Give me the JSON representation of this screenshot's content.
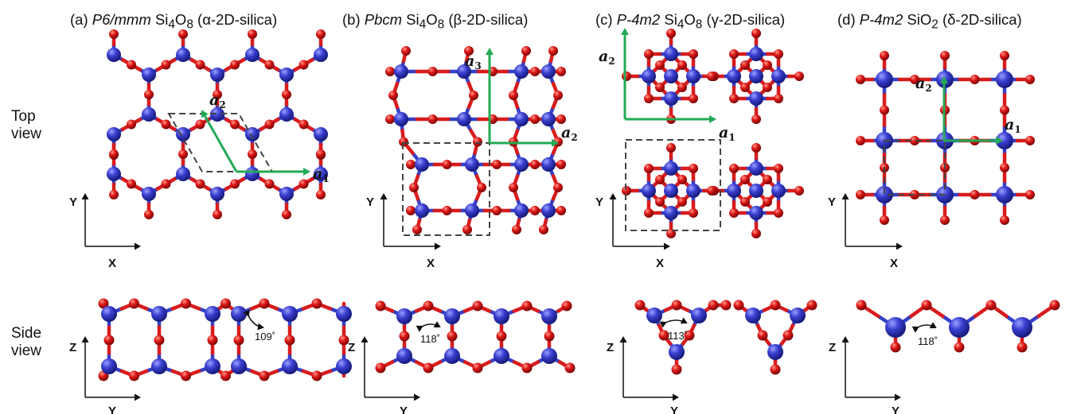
{
  "panels": [
    {
      "id": "a",
      "prefix": "(a) ",
      "group": "P6/mmm",
      "formula_main": " Si",
      "sub1": "4",
      "mid": "O",
      "sub2": "8",
      "suffix": " (α-2D-silica)"
    },
    {
      "id": "b",
      "prefix": "(b) ",
      "group": "Pbcm",
      "formula_main": " Si",
      "sub1": "4",
      "mid": "O",
      "sub2": "8",
      "suffix": " (β-2D-silica)"
    },
    {
      "id": "c",
      "prefix": "(c) ",
      "group": "P-4m2",
      "formula_main": " Si",
      "sub1": "4",
      "mid": "O",
      "sub2": "8",
      "suffix": " (γ-2D-silica)"
    },
    {
      "id": "d",
      "prefix": "(d) ",
      "group": "P-4m2",
      "formula_main": " SiO",
      "sub1": "2",
      "mid": "",
      "sub2": "",
      "suffix": " (δ-2D-silica)"
    }
  ],
  "row_labels": {
    "top": "Top\nview",
    "side": "Side\nview"
  },
  "axes": {
    "x": "X",
    "y": "Y",
    "z": "Z"
  },
  "vectors": {
    "a1": "a",
    "a1_sub": "1",
    "a2": "a",
    "a2_sub": "2",
    "a3": "a",
    "a3_sub": "3"
  },
  "angles": {
    "a": "109˚",
    "b": "118˚",
    "c": "113˚",
    "d": "118˚"
  },
  "colors": {
    "silicon": "#3a3fd0",
    "oxygen": "#e01818",
    "lattice_vector": "#22aa55",
    "unit_cell": "#444444"
  }
}
